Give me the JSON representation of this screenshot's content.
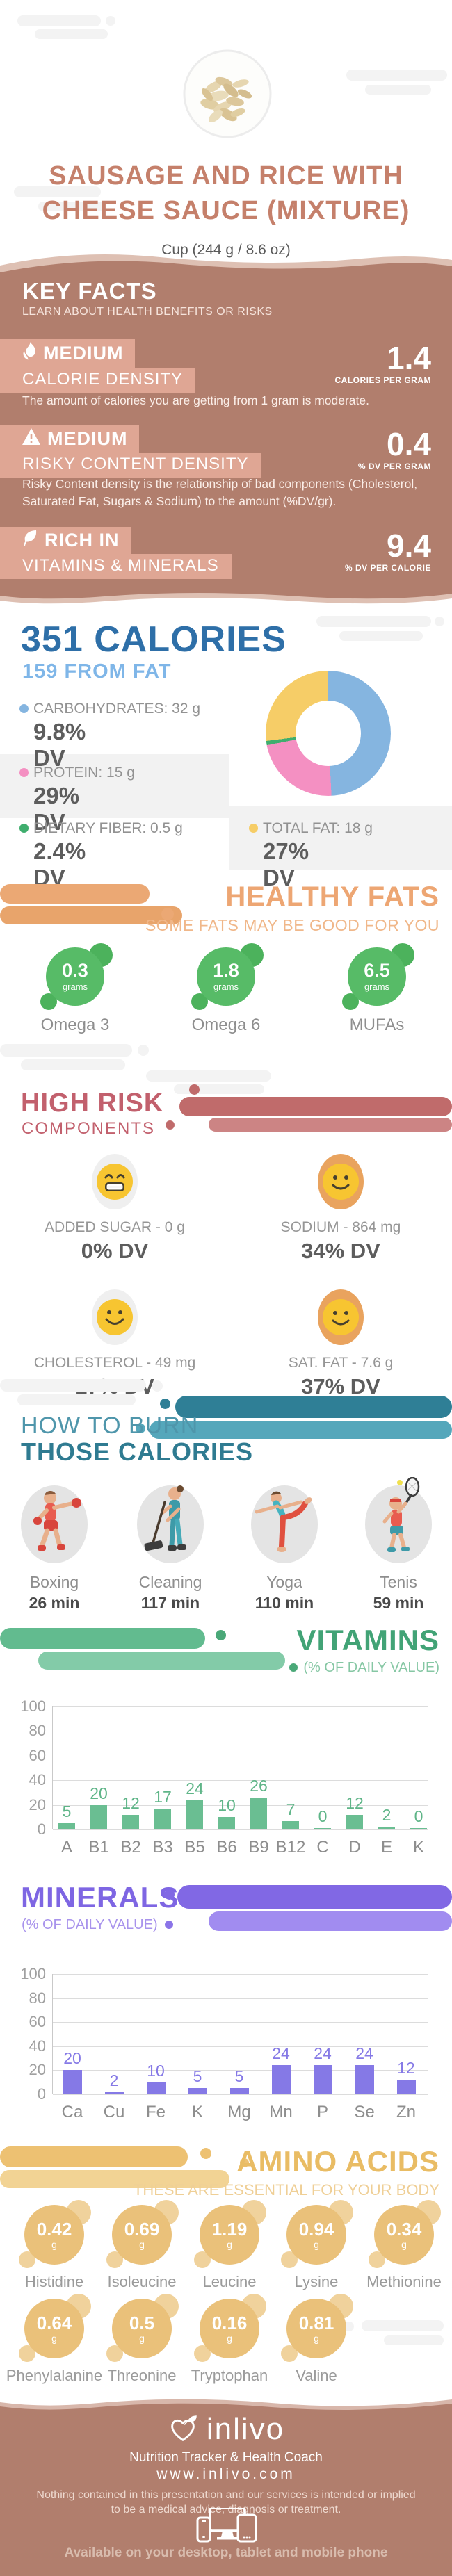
{
  "header": {
    "title_line1": "SAUSAGE AND RICE WITH",
    "title_line2": "CHEESE SAUCE (MIXTURE)",
    "serving": "Cup (244 g / 8.6 oz)"
  },
  "key_facts": {
    "heading": "KEY FACTS",
    "subheading": "LEARN ABOUT HEALTH BENEFITS OR RISKS",
    "items": [
      {
        "level": "MEDIUM",
        "name": "CALORIE DENSITY",
        "value": "1.4",
        "unit": "CALORIES PER GRAM",
        "description": "The amount of calories you are getting from 1 gram is moderate."
      },
      {
        "level": "MEDIUM",
        "name": "RISKY CONTENT DENSITY",
        "value": "0.4",
        "unit": "% DV PER GRAM",
        "description": "Risky Content density is the relationship of bad components (Cholesterol, Saturated Fat, Sugars & Sodium) to the amount (%DV/gr)."
      },
      {
        "level": "RICH IN",
        "name": "VITAMINS & MINERALS",
        "value": "9.4",
        "unit": "% DV PER CALORIE",
        "description": ""
      }
    ]
  },
  "calories": {
    "title": "351 CALORIES",
    "subtitle": "159 FROM FAT",
    "legend": [
      {
        "label": "CARBOHYDRATES: 32 g",
        "dv": "9.8% DV",
        "color": "#85b5e0"
      },
      {
        "label": "PROTEIN: 15 g",
        "dv": "29% DV",
        "color": "#f490c2"
      },
      {
        "label": "DIETARY FIBER: 0.5 g",
        "dv": "2.4% DV",
        "color": "#3fae6e"
      },
      {
        "label": "TOTAL FAT: 18 g",
        "dv": "27% DV",
        "color": "#f6cd67"
      }
    ],
    "donut_segments": [
      {
        "name": "carbohydrates",
        "color": "#85b5e0",
        "deg": 177
      },
      {
        "name": "protein",
        "color": "#f490c2",
        "deg": 82
      },
      {
        "name": "dietary-fiber",
        "color": "#3fae6e",
        "deg": 4
      },
      {
        "name": "total-fat",
        "color": "#f6cd67",
        "deg": 97
      }
    ]
  },
  "healthy_fats": {
    "heading": "HEALTHY FATS",
    "subheading": "SOME FATS MAY BE GOOD FOR YOU",
    "items": [
      {
        "value": "0.3",
        "unit": "grams",
        "name": "Omega 3"
      },
      {
        "value": "1.8",
        "unit": "grams",
        "name": "Omega 6"
      },
      {
        "value": "6.5",
        "unit": "grams",
        "name": "MUFAs"
      }
    ]
  },
  "high_risk": {
    "heading": "HIGH RISK",
    "subheading": "COMPONENTS",
    "items": [
      {
        "label": "ADDED SUGAR - 0 g",
        "dv": "0% DV"
      },
      {
        "label": "SODIUM - 864 mg",
        "dv": "34% DV"
      },
      {
        "label": "CHOLESTEROL - 49 mg",
        "dv": "17% DV"
      },
      {
        "label": "SAT. FAT - 7.6 g",
        "dv": "37% DV"
      }
    ]
  },
  "burn": {
    "heading_line1": "HOW TO BURN",
    "heading_line2": "THOSE CALORIES",
    "activities": [
      {
        "name": "Boxing",
        "minutes": "26 min"
      },
      {
        "name": "Cleaning",
        "minutes": "117 min"
      },
      {
        "name": "Yoga",
        "minutes": "110 min"
      },
      {
        "name": "Tenis",
        "minutes": "59 min"
      }
    ]
  },
  "chart_data": [
    {
      "type": "bar",
      "title": "VITAMINS",
      "subtitle": "(% OF DAILY VALUE)",
      "categories": [
        "A",
        "B1",
        "B2",
        "B3",
        "B5",
        "B6",
        "B9",
        "B12",
        "C",
        "D",
        "E",
        "K"
      ],
      "values": [
        5,
        20,
        12,
        17,
        24,
        10,
        26,
        7,
        0,
        12,
        2,
        0
      ],
      "ylim": [
        0,
        100
      ],
      "yticks": [
        0,
        20,
        40,
        60,
        80,
        100
      ],
      "bar_color": "#6abe92",
      "value_color": "#5fb588",
      "grid": true,
      "legend_position": "none"
    },
    {
      "type": "bar",
      "title": "MINERALS",
      "subtitle": "(% OF DAILY VALUE)",
      "categories": [
        "Ca",
        "Cu",
        "Fe",
        "K",
        "Mg",
        "Mn",
        "P",
        "Se",
        "Zn"
      ],
      "values": [
        20,
        2,
        10,
        5,
        5,
        24,
        24,
        24,
        12
      ],
      "ylim": [
        0,
        100
      ],
      "yticks": [
        0,
        20,
        40,
        60,
        80,
        100
      ],
      "bar_color": "#8579e6",
      "value_color": "#8579e6",
      "grid": true,
      "legend_position": "none"
    }
  ],
  "amino_acids": {
    "heading": "AMINO ACIDS",
    "subheading": "THESE ARE ESSENTIAL FOR YOUR BODY",
    "items": [
      {
        "value": "0.42",
        "unit": "g",
        "name": "Histidine"
      },
      {
        "value": "0.69",
        "unit": "g",
        "name": "Isoleucine"
      },
      {
        "value": "1.19",
        "unit": "g",
        "name": "Leucine"
      },
      {
        "value": "0.94",
        "unit": "g",
        "name": "Lysine"
      },
      {
        "value": "0.34",
        "unit": "g",
        "name": "Methionine"
      },
      {
        "value": "0.64",
        "unit": "g",
        "name": "Phenylalanine"
      },
      {
        "value": "0.5",
        "unit": "g",
        "name": "Threonine"
      },
      {
        "value": "0.16",
        "unit": "g",
        "name": "Tryptophan"
      },
      {
        "value": "0.81",
        "unit": "g",
        "name": "Valine"
      }
    ]
  },
  "footer": {
    "brand": "inlivo",
    "tagline": "Nutrition Tracker & Health Coach",
    "website": "www.inlivo.com",
    "disclaimer_line1": "Nothing contained in this presentation and our services is intended or implied",
    "disclaimer_line2": "to be a medical advice, diagnosis or treatment.",
    "availability": "Available on your desktop, tablet and mobile phone"
  },
  "colors": {
    "band": "#b17e6d",
    "chip": "#dfa694",
    "wave_accent": "#dec0b3",
    "title": "#c5806b",
    "calories_main": "#2e6fa8",
    "calories_sub": "#7fb6e8",
    "healthy": "#eda673",
    "risk": "#c2606d",
    "burn_light": "#4f96ab",
    "burn_dark": "#2f7b91",
    "vitamins": "#42a376",
    "minerals": "#7e66e3",
    "amino": "#e9bc64"
  }
}
